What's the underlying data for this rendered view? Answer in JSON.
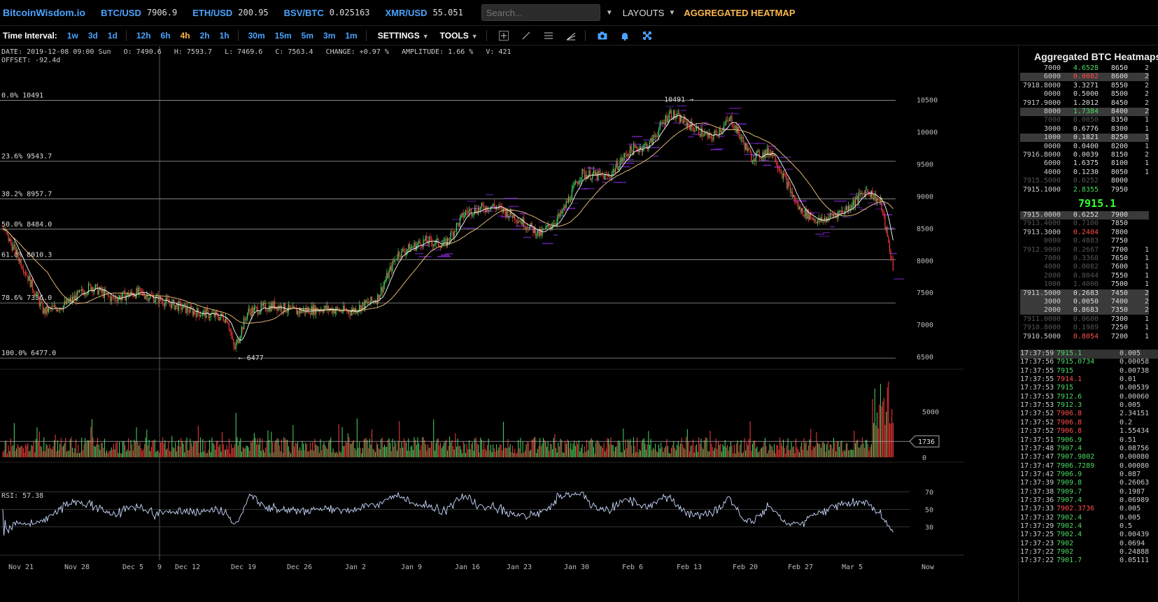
{
  "app": {
    "logo": "BitcoinWisdom.io",
    "tickers": [
      {
        "symbol": "BTC/USD",
        "value": "7906.9"
      },
      {
        "symbol": "ETH/USD",
        "value": "200.95"
      },
      {
        "symbol": "BSV/BTC",
        "value": "0.025163"
      },
      {
        "symbol": "XMR/USD",
        "value": "55.051"
      }
    ],
    "search_placeholder": "Search...",
    "layouts_label": "LAYOUTS",
    "aggregated_heatmap_label": "AGGREGATED HEATMAP"
  },
  "toolbar": {
    "time_interval_label": "Time Interval:",
    "intervals": [
      "1w",
      "3d",
      "1d",
      "12h",
      "6h",
      "4h",
      "2h",
      "1h",
      "30m",
      "15m",
      "5m",
      "3m",
      "1m"
    ],
    "active_interval": "4h",
    "settings_label": "SETTINGS",
    "tools_label": "TOOLS",
    "tool_icons": [
      "crosshair-icon",
      "trendline-icon",
      "parallel-lines-icon",
      "fib-fan-icon",
      "camera-icon",
      "bell-icon",
      "fullscreen-icon"
    ]
  },
  "chart": {
    "ohlc_line": "DATE: 2019-12-08 09:00 Sun   O: 7490.6   H: 7593.7   L: 7469.6   C: 7563.4   CHANGE: +0.97 %   AMPLITUDE: 1.66 %   V: 421",
    "offset_line": "OFFSET: -92.4d",
    "rsi_line": "RSI: 57.38",
    "high_marker": "10491",
    "low_marker": "6477",
    "volume_marker": "1736",
    "colors": {
      "up": "#4cd964",
      "down": "#ff3b3b",
      "ma_fast": "#ffffff",
      "ma_slow": "#f5c77e",
      "heat": "#8a2be2",
      "rsi": "#c9dbff"
    }
  },
  "chart_data": {
    "type": "candlestick",
    "x_labels": [
      "Nov 21",
      "Nov 28",
      "Dec 5",
      "9",
      "Dec 12",
      "Dec 19",
      "Dec 26",
      "Jan 2",
      "Jan 9",
      "Jan 16",
      "Jan 23",
      "Jan 30",
      "Feb 6",
      "Feb 13",
      "Feb 20",
      "Feb 27",
      "Mar 5",
      "Now"
    ],
    "price_ticks": [
      10500,
      10000,
      9500,
      9000,
      8500,
      8000,
      7500,
      7000,
      6500
    ],
    "price_range": [
      6380,
      10900
    ],
    "fib_levels": [
      {
        "label": "0.0% 10491",
        "price": 10491
      },
      {
        "label": "23.6% 9543.7",
        "price": 9543.7
      },
      {
        "label": "38.2% 8957.7",
        "price": 8957.7
      },
      {
        "label": "50.0% 8484.0",
        "price": 8484.0
      },
      {
        "label": "61.8% 8010.3",
        "price": 8010.3
      },
      {
        "label": "78.6% 7336.0",
        "price": 7336.0
      },
      {
        "label": "100.0% 6477.0",
        "price": 6477.0
      }
    ],
    "price_keypoints": [
      {
        "day": 0,
        "price": 8500
      },
      {
        "day": 3,
        "price": 7900
      },
      {
        "day": 6,
        "price": 7200
      },
      {
        "day": 9,
        "price": 7300
      },
      {
        "day": 13,
        "price": 7600
      },
      {
        "day": 16,
        "price": 7400
      },
      {
        "day": 20,
        "price": 7500
      },
      {
        "day": 24,
        "price": 7350
      },
      {
        "day": 28,
        "price": 7200
      },
      {
        "day": 33,
        "price": 7100
      },
      {
        "day": 34,
        "price": 6600
      },
      {
        "day": 36,
        "price": 7200
      },
      {
        "day": 40,
        "price": 7300
      },
      {
        "day": 43,
        "price": 7200
      },
      {
        "day": 47,
        "price": 7250
      },
      {
        "day": 51,
        "price": 7200
      },
      {
        "day": 55,
        "price": 7400
      },
      {
        "day": 58,
        "price": 8100
      },
      {
        "day": 62,
        "price": 8300
      },
      {
        "day": 65,
        "price": 8250
      },
      {
        "day": 68,
        "price": 8750
      },
      {
        "day": 72,
        "price": 8850
      },
      {
        "day": 75,
        "price": 8700
      },
      {
        "day": 79,
        "price": 8400
      },
      {
        "day": 82,
        "price": 8700
      },
      {
        "day": 85,
        "price": 9350
      },
      {
        "day": 89,
        "price": 9300
      },
      {
        "day": 92,
        "price": 9700
      },
      {
        "day": 95,
        "price": 9800
      },
      {
        "day": 98,
        "price": 10300
      },
      {
        "day": 101,
        "price": 10100
      },
      {
        "day": 104,
        "price": 9900
      },
      {
        "day": 107,
        "price": 10200
      },
      {
        "day": 110,
        "price": 9600
      },
      {
        "day": 113,
        "price": 9700
      },
      {
        "day": 117,
        "price": 8800
      },
      {
        "day": 120,
        "price": 8600
      },
      {
        "day": 124,
        "price": 8800
      },
      {
        "day": 127,
        "price": 9100
      },
      {
        "day": 129,
        "price": 8900
      },
      {
        "day": 131,
        "price": 7800
      }
    ],
    "volume_ticks": [
      5000,
      0
    ],
    "rsi_ticks": [
      70,
      50,
      30
    ],
    "rsi_range": [
      0,
      100
    ]
  },
  "orderbook": {
    "title": "Aggregated BTC Heatmaps",
    "asks": [
      {
        "a": "7000",
        "b": "4.6528",
        "bc": "g",
        "c": "8650",
        "d": "2",
        "hl": false,
        "dim": false
      },
      {
        "a": "6000",
        "b": "0.0082",
        "bc": "r",
        "c": "8600",
        "d": "2",
        "hl": true,
        "dim": false
      },
      {
        "a": "7918.8000",
        "b": "3.3271",
        "bc": "",
        "c": "8550",
        "d": "2",
        "hl": false,
        "dim": false
      },
      {
        "a": "0000",
        "b": "0.5000",
        "bc": "",
        "c": "8500",
        "d": "2",
        "hl": false,
        "dim": false
      },
      {
        "a": "7917.9000",
        "b": "1.2012",
        "bc": "",
        "c": "8450",
        "d": "2",
        "hl": false,
        "dim": false
      },
      {
        "a": "8000",
        "b": "1.7384",
        "bc": "g",
        "c": "8400",
        "d": "2",
        "hl": true,
        "dim": false
      },
      {
        "a": "7000",
        "b": "0.0050",
        "bc": "",
        "c": "8350",
        "d": "1",
        "hl": false,
        "dim": true
      },
      {
        "a": "3000",
        "b": "0.6776",
        "bc": "",
        "c": "8300",
        "d": "1",
        "hl": false,
        "dim": false
      },
      {
        "a": "1000",
        "b": "0.1821",
        "bc": "",
        "c": "8250",
        "d": "1",
        "hl": true,
        "dim": false
      },
      {
        "a": "0000",
        "b": "0.0400",
        "bc": "",
        "c": "8200",
        "d": "1",
        "hl": false,
        "dim": false
      },
      {
        "a": "7916.8000",
        "b": "0.0039",
        "bc": "",
        "c": "8150",
        "d": "2",
        "hl": false,
        "dim": false
      },
      {
        "a": "6000",
        "b": "1.6375",
        "bc": "",
        "c": "8100",
        "d": "1",
        "hl": false,
        "dim": false
      },
      {
        "a": "4000",
        "b": "0.1230",
        "bc": "",
        "c": "8050",
        "d": "1",
        "hl": false,
        "dim": false
      },
      {
        "a": "7915.5000",
        "b": "0.0252",
        "bc": "",
        "c": "8000",
        "d": "",
        "hl": false,
        "dim": true
      },
      {
        "a": "7915.1000",
        "b": "2.8355",
        "bc": "g",
        "c": "7950",
        "d": "",
        "hl": false,
        "dim": false
      }
    ],
    "mid_price": "7915.1",
    "bids": [
      {
        "a": "7915.0000",
        "b": "0.6252",
        "bc": "",
        "c": "7900",
        "d": "",
        "hl": true,
        "dim": false
      },
      {
        "a": "7913.4000",
        "b": "0.7100",
        "bc": "g",
        "c": "7850",
        "d": "",
        "hl": false,
        "dim": true
      },
      {
        "a": "7913.3000",
        "b": "0.2404",
        "bc": "r",
        "c": "7800",
        "d": "",
        "hl": false,
        "dim": false
      },
      {
        "a": "0000",
        "b": "0.4883",
        "bc": "",
        "c": "7750",
        "d": "",
        "hl": false,
        "dim": true
      },
      {
        "a": "7912.9000",
        "b": "0.2667",
        "bc": "",
        "c": "7700",
        "d": "1",
        "hl": false,
        "dim": true
      },
      {
        "a": "7000",
        "b": "0.3368",
        "bc": "g",
        "c": "7650",
        "d": "1",
        "hl": false,
        "dim": true
      },
      {
        "a": "4000",
        "b": "0.0082",
        "bc": "",
        "c": "7600",
        "d": "1",
        "hl": false,
        "dim": true
      },
      {
        "a": "2000",
        "b": "0.8044",
        "bc": "",
        "c": "7550",
        "d": "1",
        "hl": false,
        "dim": true
      },
      {
        "a": "1000",
        "b": "1.4000",
        "bc": "",
        "c": "7500",
        "d": "1",
        "hl": false,
        "dim": true
      },
      {
        "a": "7911.5000",
        "b": "0.2683",
        "bc": "",
        "c": "7450",
        "d": "2",
        "hl": true,
        "dim": false
      },
      {
        "a": "3000",
        "b": "0.0050",
        "bc": "",
        "c": "7400",
        "d": "2",
        "hl": true,
        "dim": false
      },
      {
        "a": "2000",
        "b": "0.8683",
        "bc": "",
        "c": "7350",
        "d": "2",
        "hl": true,
        "dim": false
      },
      {
        "a": "7911.0000",
        "b": "0.0600",
        "bc": "",
        "c": "7300",
        "d": "1",
        "hl": false,
        "dim": true
      },
      {
        "a": "7910.8000",
        "b": "0.1989",
        "bc": "",
        "c": "7250",
        "d": "1",
        "hl": false,
        "dim": true
      },
      {
        "a": "7910.5000",
        "b": "0.8054",
        "bc": "r",
        "c": "7200",
        "d": "1",
        "hl": false,
        "dim": false
      }
    ]
  },
  "trades": [
    {
      "time": "17:37:59",
      "price": "7915.1",
      "side": "g",
      "qty": "0.005"
    },
    {
      "time": "17:37:56",
      "price": "7915.0734",
      "side": "g",
      "qty": "0.00058"
    },
    {
      "time": "17:37:55",
      "price": "7915",
      "side": "g",
      "qty": "0.00738"
    },
    {
      "time": "17:37:55",
      "price": "7914.1",
      "side": "r",
      "qty": "0.01"
    },
    {
      "time": "17:37:53",
      "price": "7915",
      "side": "g",
      "qty": "0.00539"
    },
    {
      "time": "17:37:53",
      "price": "7912.6",
      "side": "g",
      "qty": "0.00060"
    },
    {
      "time": "17:37:53",
      "price": "7912.3",
      "side": "g",
      "qty": "0.005"
    },
    {
      "time": "17:37:52",
      "price": "7906.8",
      "side": "r",
      "qty": "2.34151"
    },
    {
      "time": "17:37:52",
      "price": "7906.8",
      "side": "r",
      "qty": "0.2"
    },
    {
      "time": "17:37:52",
      "price": "7906.8",
      "side": "r",
      "qty": "1.55434"
    },
    {
      "time": "17:37:51",
      "price": "7906.9",
      "side": "g",
      "qty": "0.51"
    },
    {
      "time": "17:37:48",
      "price": "7907.4",
      "side": "g",
      "qty": "0.08756"
    },
    {
      "time": "17:37:47",
      "price": "7907.9802",
      "side": "g",
      "qty": "0.00080"
    },
    {
      "time": "17:37:47",
      "price": "7906.7289",
      "side": "g",
      "qty": "0.00080"
    },
    {
      "time": "17:37:42",
      "price": "7906.9",
      "side": "g",
      "qty": "0.087"
    },
    {
      "time": "17:37:39",
      "price": "7909.8",
      "side": "g",
      "qty": "0.26063"
    },
    {
      "time": "17:37:38",
      "price": "7909.7",
      "side": "g",
      "qty": "0.1987"
    },
    {
      "time": "17:37:36",
      "price": "7907.4",
      "side": "g",
      "qty": "0.06989"
    },
    {
      "time": "17:37:33",
      "price": "7902.3736",
      "side": "r",
      "qty": "0.005"
    },
    {
      "time": "17:37:32",
      "price": "7902.4",
      "side": "g",
      "qty": "0.005"
    },
    {
      "time": "17:37:29",
      "price": "7902.4",
      "side": "g",
      "qty": "0.5"
    },
    {
      "time": "17:37:25",
      "price": "7902.4",
      "side": "g",
      "qty": "0.00439"
    },
    {
      "time": "17:37:23",
      "price": "7902",
      "side": "g",
      "qty": "0.0694"
    },
    {
      "time": "17:37:22",
      "price": "7902",
      "side": "g",
      "qty": "0.24888"
    },
    {
      "time": "17:37:22",
      "price": "7901.7",
      "side": "g",
      "qty": "0.05111"
    }
  ]
}
